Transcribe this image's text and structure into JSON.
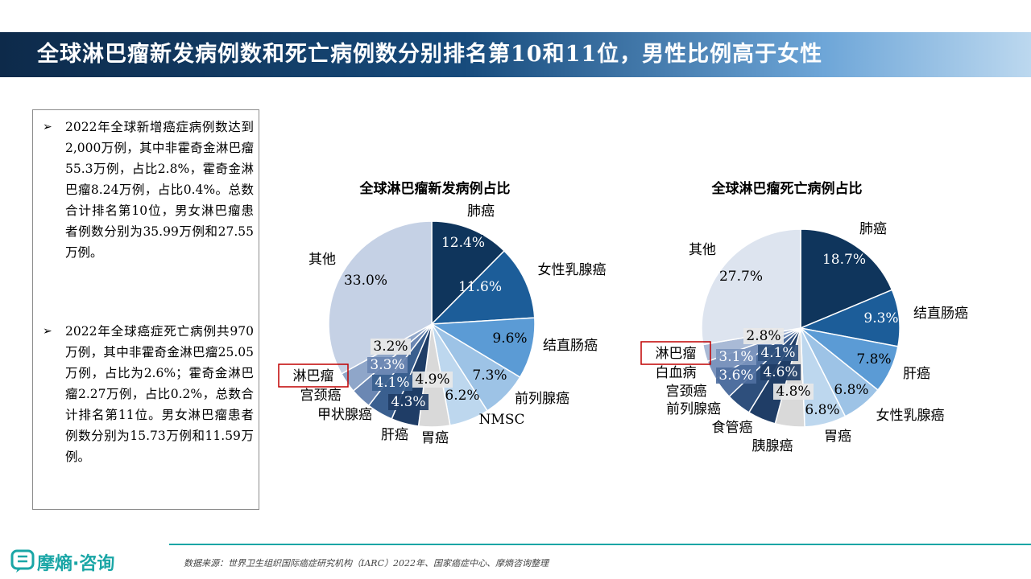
{
  "header": {
    "title": "全球淋巴瘤新发病例数和死亡病例数分别排名第10和11位，男性比例高于女性"
  },
  "notes": [
    "2022年全球新增癌症病例数达到2,000万例，其中非霍奇金淋巴瘤55.3万例，占比2.8%，霍奇金淋巴瘤8.24万例，占比0.4%。总数合计排名第10位，男女淋巴瘤患者例数分别为35.99万例和27.55万例。",
    "2022年全球癌症死亡病例共970万例，其中非霍奇金淋巴瘤25.05万例，占比为2.6%；霍奇金淋巴瘤2.27万例，占比0.2%，总数合计排名第11位。男女淋巴瘤患者例数分别为15.73万例和11.59万例。"
  ],
  "chart_data": [
    {
      "type": "pie",
      "title": "全球淋巴瘤新发病例占比",
      "start": "12 o'clock, clockwise",
      "slices": [
        {
          "label": "肺癌",
          "value": 12.4,
          "value_label": "12.4%",
          "color": "#0f355c"
        },
        {
          "label": "女性乳腺癌",
          "value": 11.6,
          "value_label": "11.6%",
          "color": "#1c5d99"
        },
        {
          "label": "结直肠癌",
          "value": 9.6,
          "value_label": "9.6%",
          "color": "#5b9bd5"
        },
        {
          "label": "前列腺癌",
          "value": 7.3,
          "value_label": "7.3%",
          "color": "#9dc3e6"
        },
        {
          "label": "NMSC",
          "value": 6.2,
          "value_label": "6.2%",
          "color": "#bdd7ee"
        },
        {
          "label": "胃癌",
          "value": 4.9,
          "value_label": "4.9%",
          "color": "#d9d9d9"
        },
        {
          "label": "肝癌",
          "value": 4.3,
          "value_label": "4.3%",
          "color": "#1f3d66"
        },
        {
          "label": "甲状腺癌",
          "value": 4.1,
          "value_label": "4.1%",
          "color": "#3a5f8f"
        },
        {
          "label": "宫颈癌",
          "value": 3.3,
          "value_label": "3.3%",
          "color": "#6b87b3"
        },
        {
          "label": "淋巴瘤",
          "value": 3.2,
          "value_label": "3.2%",
          "color": "#8fa6c9",
          "highlight": true
        },
        {
          "label": "其他",
          "value": 33.0,
          "value_label": "33.0%",
          "color": "#c5d1e5"
        }
      ]
    },
    {
      "type": "pie",
      "title": "全球淋巴瘤死亡病例占比",
      "start": "12 o'clock, clockwise",
      "slices": [
        {
          "label": "肺癌",
          "value": 18.7,
          "value_label": "18.7%",
          "color": "#0f355c"
        },
        {
          "label": "结直肠癌",
          "value": 9.3,
          "value_label": "9.3%",
          "color": "#1c5d99"
        },
        {
          "label": "肝癌",
          "value": 7.8,
          "value_label": "7.8%",
          "color": "#5b9bd5"
        },
        {
          "label": "女性乳腺癌",
          "value": 6.8,
          "value_label": "6.8%",
          "color": "#9dc3e6"
        },
        {
          "label": "胃癌",
          "value": 6.8,
          "value_label": "6.8%",
          "color": "#bdd7ee"
        },
        {
          "label": "胰腺癌",
          "value": 4.8,
          "value_label": "4.8%",
          "color": "#d9d9d9"
        },
        {
          "label": "食管癌",
          "value": 4.6,
          "value_label": "4.6%",
          "color": "#1f3d66"
        },
        {
          "label": "前列腺癌",
          "value": 4.1,
          "value_label": "4.1%",
          "color": "#2e4f7c"
        },
        {
          "label": "宫颈癌",
          "value": 3.6,
          "value_label": "3.6%",
          "color": "#4f6f9f"
        },
        {
          "label": "白血病",
          "value": 3.1,
          "value_label": "3.1%",
          "color": "#7b94bd"
        },
        {
          "label": "淋巴瘤",
          "value": 2.8,
          "value_label": "2.8%",
          "color": "#a9bad6",
          "highlight": true
        },
        {
          "label": "其他",
          "value": 27.7,
          "value_label": "27.7%",
          "color": "#dde4ef"
        }
      ]
    }
  ],
  "footer": {
    "logo": "摩熵·咨询",
    "source": "数据来源：世界卫生组织国际癌症研究机构（IARC）2022年、国家癌症中心、摩熵咨询整理"
  },
  "colors": {
    "brand": "#1aa6a6",
    "highlight_box": "#c00000"
  }
}
